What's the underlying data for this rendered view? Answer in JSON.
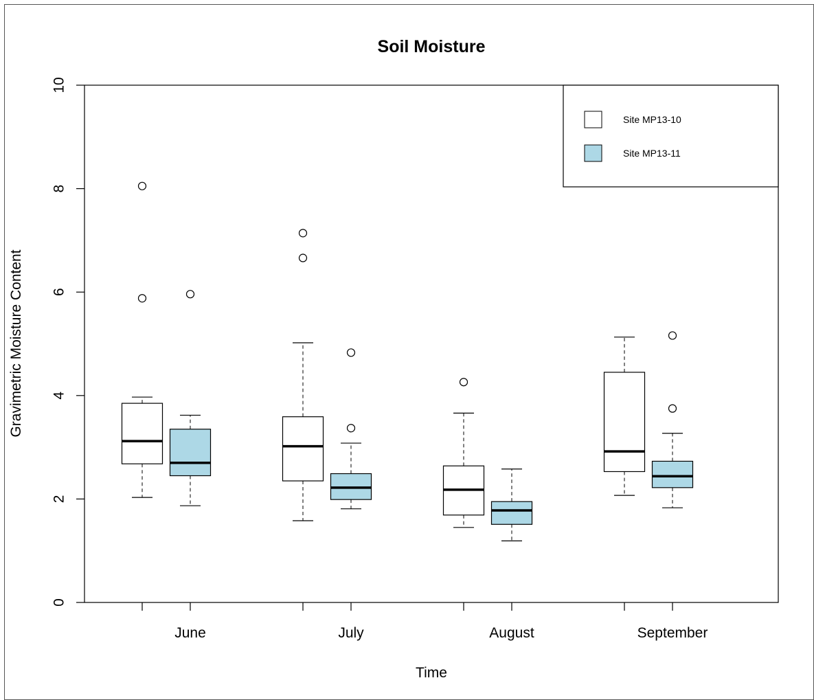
{
  "chart_data": {
    "type": "boxplot",
    "title": "Soil Moisture",
    "xlabel": "Time",
    "ylabel": "Gravimetric Moisture Content",
    "ylim": [
      0,
      10
    ],
    "yticks": [
      0,
      2,
      4,
      6,
      8,
      10
    ],
    "grid": false,
    "legend_position": "top-right",
    "categories": [
      "June",
      "July",
      "August",
      "September"
    ],
    "series": [
      {
        "name": "Site MP13-10",
        "color": "#ffffff",
        "boxes": [
          {
            "whisker_low": 2.03,
            "q1": 2.68,
            "median": 3.12,
            "q3": 3.85,
            "whisker_high": 3.97,
            "outliers": [
              8.05,
              5.88
            ]
          },
          {
            "whisker_low": 1.58,
            "q1": 2.35,
            "median": 3.02,
            "q3": 3.59,
            "whisker_high": 5.02,
            "outliers": [
              7.14,
              6.66
            ]
          },
          {
            "whisker_low": 1.45,
            "q1": 1.69,
            "median": 2.18,
            "q3": 2.64,
            "whisker_high": 3.66,
            "outliers": [
              4.26
            ]
          },
          {
            "whisker_low": 2.07,
            "q1": 2.53,
            "median": 2.92,
            "q3": 4.45,
            "whisker_high": 5.13,
            "outliers": []
          }
        ]
      },
      {
        "name": "Site MP13-11",
        "color": "#add8e6",
        "boxes": [
          {
            "whisker_low": 1.87,
            "q1": 2.45,
            "median": 2.7,
            "q3": 3.35,
            "whisker_high": 3.62,
            "outliers": [
              5.96
            ]
          },
          {
            "whisker_low": 1.81,
            "q1": 1.99,
            "median": 2.22,
            "q3": 2.49,
            "whisker_high": 3.08,
            "outliers": [
              4.83,
              3.37
            ]
          },
          {
            "whisker_low": 1.19,
            "q1": 1.51,
            "median": 1.78,
            "q3": 1.95,
            "whisker_high": 2.58,
            "outliers": []
          },
          {
            "whisker_low": 1.83,
            "q1": 2.22,
            "median": 2.44,
            "q3": 2.73,
            "whisker_high": 3.27,
            "outliers": [
              5.16,
              3.75
            ]
          }
        ]
      }
    ]
  }
}
